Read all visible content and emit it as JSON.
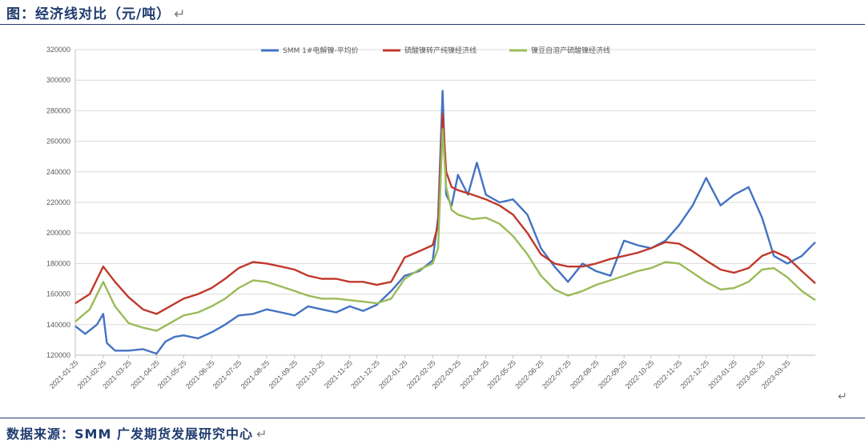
{
  "header": {
    "title": "图：经济线对比（元/吨）",
    "return_mark": "↵"
  },
  "footer": {
    "source": "数据来源：SMM 广发期货发展研究中心",
    "return_mark": "↵"
  },
  "page": {
    "return_mark": "↵"
  },
  "colors": {
    "series1": "#4472c4",
    "series2": "#c0392b",
    "series3": "#9bbb59",
    "grid": "#d9d9d9",
    "axis": "#bfbfbf"
  },
  "chart_data": {
    "type": "line",
    "title": "",
    "xlabel": "",
    "ylabel": "",
    "ylim": [
      120000,
      320000
    ],
    "yticks": [
      120000,
      140000,
      160000,
      180000,
      200000,
      220000,
      240000,
      260000,
      280000,
      300000,
      320000
    ],
    "ytick_labels": [
      "120000",
      "140000",
      "160000",
      "180000",
      "200000",
      "220000",
      "240000",
      "260000",
      "280000",
      "300000",
      "320000"
    ],
    "x_start": "2021-01-25",
    "x_end": "2023-04-25",
    "xtick_labels": [
      "2021-01-25",
      "2021-02-25",
      "2021-03-25",
      "2021-04-25",
      "2021-05-25",
      "2021-06-25",
      "2021-07-25",
      "2021-08-25",
      "2021-09-25",
      "2021-10-25",
      "2021-11-25",
      "2021-12-25",
      "2022-01-25",
      "2022-02-25",
      "2022-03-25",
      "2022-04-25",
      "2022-05-25",
      "2022-06-25",
      "2022-07-25",
      "2022-08-25",
      "2022-09-25",
      "2022-10-25",
      "2022-11-25",
      "2022-12-25",
      "2023-01-25",
      "2023-02-25",
      "2023-03-25"
    ],
    "grid": true,
    "legend_position": "top",
    "series": [
      {
        "name": "SMM 1#电解镍-平均价",
        "x": [
          "2021-01-25",
          "2021-02-05",
          "2021-02-18",
          "2021-02-25",
          "2021-03-01",
          "2021-03-10",
          "2021-03-25",
          "2021-04-10",
          "2021-04-25",
          "2021-05-05",
          "2021-05-15",
          "2021-05-25",
          "2021-06-10",
          "2021-06-25",
          "2021-07-10",
          "2021-07-25",
          "2021-08-10",
          "2021-08-25",
          "2021-09-10",
          "2021-09-25",
          "2021-10-10",
          "2021-10-25",
          "2021-11-10",
          "2021-11-25",
          "2021-12-10",
          "2021-12-25",
          "2022-01-10",
          "2022-01-25",
          "2022-02-10",
          "2022-02-25",
          "2022-03-03",
          "2022-03-08",
          "2022-03-12",
          "2022-03-18",
          "2022-03-25",
          "2022-04-05",
          "2022-04-15",
          "2022-04-25",
          "2022-05-10",
          "2022-05-25",
          "2022-06-10",
          "2022-06-25",
          "2022-07-10",
          "2022-07-25",
          "2022-08-10",
          "2022-08-25",
          "2022-09-10",
          "2022-09-25",
          "2022-10-10",
          "2022-10-25",
          "2022-11-10",
          "2022-11-25",
          "2022-12-10",
          "2022-12-25",
          "2023-01-10",
          "2023-01-25",
          "2023-02-10",
          "2023-02-25",
          "2023-03-10",
          "2023-03-25",
          "2023-04-10",
          "2023-04-25"
        ],
        "y": [
          139000,
          134000,
          140000,
          147000,
          128000,
          123000,
          123000,
          124000,
          121000,
          129000,
          132000,
          133000,
          131000,
          135000,
          140000,
          146000,
          147000,
          150000,
          148000,
          146000,
          152000,
          150000,
          148000,
          152000,
          149000,
          153000,
          162000,
          172000,
          175000,
          182000,
          210000,
          293000,
          225000,
          218000,
          238000,
          225000,
          246000,
          225000,
          220000,
          222000,
          212000,
          190000,
          178000,
          168000,
          180000,
          175000,
          172000,
          195000,
          192000,
          190000,
          195000,
          205000,
          218000,
          236000,
          218000,
          225000,
          230000,
          210000,
          185000,
          180000,
          185000,
          194000
        ]
      },
      {
        "name": "硫酸镍转产纯镍经济线",
        "x": [
          "2021-01-25",
          "2021-02-10",
          "2021-02-25",
          "2021-03-10",
          "2021-03-25",
          "2021-04-10",
          "2021-04-25",
          "2021-05-10",
          "2021-05-25",
          "2021-06-10",
          "2021-06-25",
          "2021-07-10",
          "2021-07-25",
          "2021-08-10",
          "2021-08-25",
          "2021-09-10",
          "2021-09-25",
          "2021-10-10",
          "2021-10-25",
          "2021-11-10",
          "2021-11-25",
          "2021-12-10",
          "2021-12-25",
          "2022-01-10",
          "2022-01-25",
          "2022-02-10",
          "2022-02-25",
          "2022-03-03",
          "2022-03-08",
          "2022-03-12",
          "2022-03-18",
          "2022-03-25",
          "2022-04-10",
          "2022-04-25",
          "2022-05-10",
          "2022-05-25",
          "2022-06-10",
          "2022-06-25",
          "2022-07-10",
          "2022-07-25",
          "2022-08-10",
          "2022-08-25",
          "2022-09-10",
          "2022-09-25",
          "2022-10-10",
          "2022-10-25",
          "2022-11-10",
          "2022-11-25",
          "2022-12-10",
          "2022-12-25",
          "2023-01-10",
          "2023-01-25",
          "2023-02-10",
          "2023-02-25",
          "2023-03-10",
          "2023-03-25",
          "2023-04-10",
          "2023-04-25"
        ],
        "y": [
          154000,
          160000,
          178000,
          168000,
          158000,
          150000,
          147000,
          152000,
          157000,
          160000,
          164000,
          170000,
          177000,
          181000,
          180000,
          178000,
          176000,
          172000,
          170000,
          170000,
          168000,
          168000,
          166000,
          168000,
          184000,
          188000,
          192000,
          205000,
          278000,
          240000,
          230000,
          228000,
          225000,
          222000,
          218000,
          212000,
          200000,
          186000,
          180000,
          178000,
          178000,
          180000,
          183000,
          185000,
          187000,
          190000,
          194000,
          193000,
          188000,
          182000,
          176000,
          174000,
          177000,
          185000,
          188000,
          184000,
          175000,
          167000
        ]
      },
      {
        "name": "镍豆自溶产硫酸镍经济线",
        "x": [
          "2021-01-25",
          "2021-02-10",
          "2021-02-25",
          "2021-03-10",
          "2021-03-25",
          "2021-04-10",
          "2021-04-25",
          "2021-05-10",
          "2021-05-25",
          "2021-06-10",
          "2021-06-25",
          "2021-07-10",
          "2021-07-25",
          "2021-08-10",
          "2021-08-25",
          "2021-09-10",
          "2021-09-25",
          "2021-10-10",
          "2021-10-25",
          "2021-11-10",
          "2021-11-25",
          "2021-12-10",
          "2021-12-25",
          "2022-01-10",
          "2022-01-25",
          "2022-02-10",
          "2022-02-25",
          "2022-03-03",
          "2022-03-08",
          "2022-03-12",
          "2022-03-18",
          "2022-03-25",
          "2022-04-10",
          "2022-04-25",
          "2022-05-10",
          "2022-05-25",
          "2022-06-10",
          "2022-06-25",
          "2022-07-10",
          "2022-07-25",
          "2022-08-10",
          "2022-08-25",
          "2022-09-10",
          "2022-09-25",
          "2022-10-10",
          "2022-10-25",
          "2022-11-10",
          "2022-11-25",
          "2022-12-10",
          "2022-12-25",
          "2023-01-10",
          "2023-01-25",
          "2023-02-10",
          "2023-02-25",
          "2023-03-10",
          "2023-03-25",
          "2023-04-10",
          "2023-04-25"
        ],
        "y": [
          142000,
          150000,
          168000,
          152000,
          141000,
          138000,
          136000,
          141000,
          146000,
          148000,
          152000,
          157000,
          164000,
          169000,
          168000,
          165000,
          162000,
          159000,
          157000,
          157000,
          156000,
          155000,
          154000,
          157000,
          170000,
          176000,
          180000,
          190000,
          268000,
          230000,
          215000,
          212000,
          209000,
          210000,
          206000,
          198000,
          186000,
          172000,
          163000,
          159000,
          162000,
          166000,
          169000,
          172000,
          175000,
          177000,
          181000,
          180000,
          174000,
          168000,
          163000,
          164000,
          168000,
          176000,
          177000,
          171000,
          162000,
          156000
        ]
      }
    ]
  }
}
